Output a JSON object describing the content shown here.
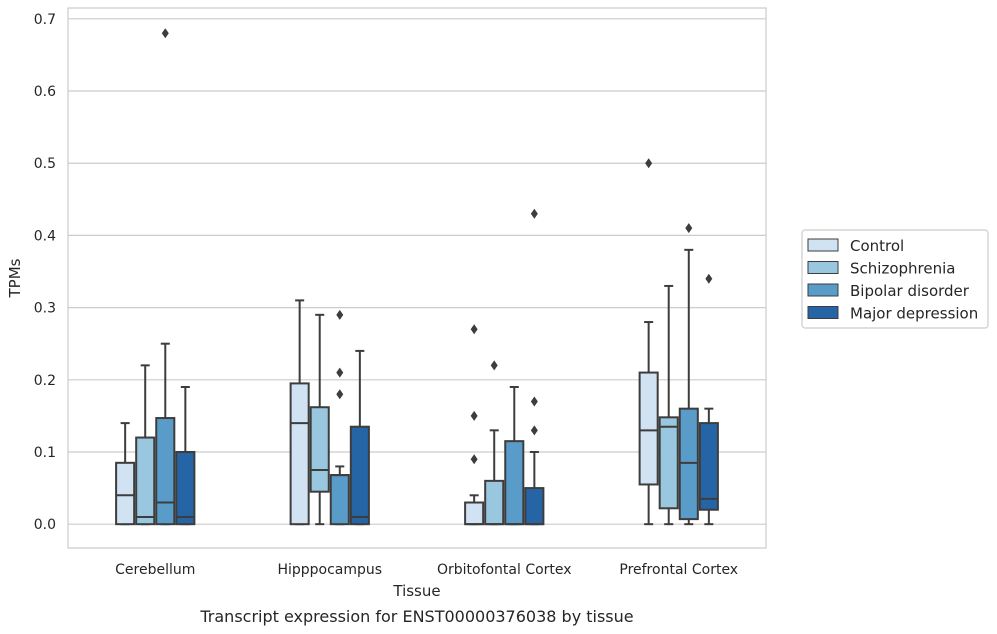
{
  "chart_data": {
    "type": "boxplot",
    "title": "",
    "caption": "Transcript expression for ENST00000376038 by tissue",
    "xlabel": "Tissue",
    "ylabel": "TPMs",
    "ylim": [
      -0.033,
      0.715
    ],
    "yticks": [
      "0.0",
      "0.1",
      "0.2",
      "0.3",
      "0.4",
      "0.5",
      "0.6",
      "0.7"
    ],
    "grid": "horizontal",
    "legend_position": "right",
    "categories": [
      "Cerebellum",
      "Hipppocampus",
      "Orbitofontal Cortex",
      "Prefrontal Cortex"
    ],
    "series": [
      {
        "name": "Control",
        "color": "#d1e2f2",
        "boxes": [
          {
            "whislo": 0.0,
            "q1": 0.0,
            "med": 0.04,
            "q3": 0.085,
            "whishi": 0.14,
            "fliers": []
          },
          {
            "whislo": 0.0,
            "q1": 0.0,
            "med": 0.14,
            "q3": 0.195,
            "whishi": 0.31,
            "fliers": []
          },
          {
            "whislo": 0.0,
            "q1": 0.0,
            "med": 0.0,
            "q3": 0.03,
            "whishi": 0.04,
            "fliers": [
              0.09,
              0.15,
              0.27
            ]
          },
          {
            "whislo": 0.0,
            "q1": 0.055,
            "med": 0.13,
            "q3": 0.21,
            "whishi": 0.28,
            "fliers": [
              0.5
            ]
          }
        ]
      },
      {
        "name": "Schizophrenia",
        "color": "#9ac7e0",
        "boxes": [
          {
            "whislo": 0.0,
            "q1": 0.0,
            "med": 0.01,
            "q3": 0.12,
            "whishi": 0.22,
            "fliers": []
          },
          {
            "whislo": 0.0,
            "q1": 0.045,
            "med": 0.075,
            "q3": 0.162,
            "whishi": 0.29,
            "fliers": []
          },
          {
            "whislo": 0.0,
            "q1": 0.0,
            "med": 0.0,
            "q3": 0.06,
            "whishi": 0.13,
            "fliers": [
              0.22
            ]
          },
          {
            "whislo": 0.0,
            "q1": 0.022,
            "med": 0.135,
            "q3": 0.148,
            "whishi": 0.33,
            "fliers": []
          }
        ]
      },
      {
        "name": "Bipolar disorder",
        "color": "#5a9cc9",
        "boxes": [
          {
            "whislo": 0.0,
            "q1": 0.0,
            "med": 0.03,
            "q3": 0.147,
            "whishi": 0.25,
            "fliers": [
              0.68
            ]
          },
          {
            "whislo": 0.0,
            "q1": 0.0,
            "med": 0.068,
            "q3": 0.068,
            "whishi": 0.08,
            "fliers": [
              0.18,
              0.21,
              0.29
            ]
          },
          {
            "whislo": 0.0,
            "q1": 0.0,
            "med": 0.0,
            "q3": 0.115,
            "whishi": 0.19,
            "fliers": []
          },
          {
            "whislo": 0.0,
            "q1": 0.007,
            "med": 0.085,
            "q3": 0.16,
            "whishi": 0.38,
            "fliers": [
              0.41
            ]
          }
        ]
      },
      {
        "name": "Major depression",
        "color": "#2565a5",
        "boxes": [
          {
            "whislo": 0.0,
            "q1": 0.0,
            "med": 0.01,
            "q3": 0.1,
            "whishi": 0.19,
            "fliers": []
          },
          {
            "whislo": 0.0,
            "q1": 0.0,
            "med": 0.01,
            "q3": 0.135,
            "whishi": 0.24,
            "fliers": []
          },
          {
            "whislo": 0.0,
            "q1": 0.0,
            "med": 0.0,
            "q3": 0.05,
            "whishi": 0.1,
            "fliers": [
              0.13,
              0.17,
              0.43
            ]
          },
          {
            "whislo": 0.0,
            "q1": 0.02,
            "med": 0.035,
            "q3": 0.14,
            "whishi": 0.16,
            "fliers": [
              0.34
            ]
          }
        ]
      }
    ]
  }
}
